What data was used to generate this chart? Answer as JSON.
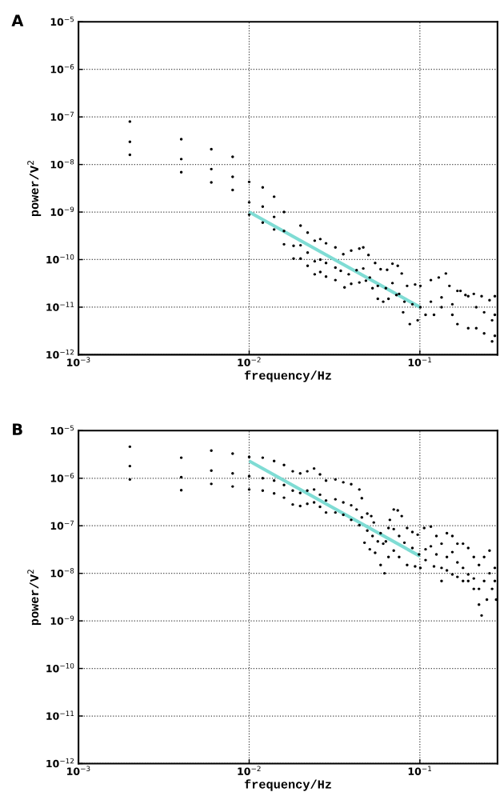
{
  "chart_data": [
    {
      "type": "scatter",
      "annotations": [
        "A"
      ],
      "xlabel": "frequency/Hz",
      "ylabel": "power/V$^{2}$",
      "log": "xy",
      "grid": true,
      "xlim": [
        0.001,
        0.285
      ],
      "ylim": [
        1e-12,
        1e-05
      ],
      "xticks": [
        {
          "value": 0.001,
          "label": "10$^{−3}$"
        },
        {
          "value": 0.01,
          "label": "10$^{−2}$"
        },
        {
          "value": 0.1,
          "label": "10$^{−1}$"
        }
      ],
      "yticks": [
        {
          "value": 1e-12,
          "label": "10$^{−12}$"
        },
        {
          "value": 1e-11,
          "label": "10$^{−11}$"
        },
        {
          "value": 1e-10,
          "label": "10$^{−10}$"
        },
        {
          "value": 1e-09,
          "label": "10$^{−9}$"
        },
        {
          "value": 1e-08,
          "label": "10$^{−8}$"
        },
        {
          "value": 1e-07,
          "label": "10$^{−7}$"
        },
        {
          "value": 1e-06,
          "label": "10$^{−6}$"
        },
        {
          "value": 1e-05,
          "label": "10$^{−5}$"
        }
      ],
      "series": [
        {
          "color": "#000000",
          "x": [
            0.002,
            0.004,
            0.006,
            0.008,
            0.01,
            0.012,
            0.014,
            0.016,
            0.02,
            0.022,
            0.0242,
            0.0261,
            0.0282,
            0.032,
            0.0356,
            0.0396,
            0.0442,
            0.0466,
            0.05,
            0.0547,
            0.0589,
            0.0643,
            0.0691,
            0.0742,
            0.0783,
            0.0842,
            0.0938,
            0.1007,
            0.116,
            0.129,
            0.142,
            0.149,
            0.166,
            0.185,
            0.207,
            0.23,
            0.256,
            0.275
          ],
          "values": [
            8e-08,
            3.4e-08,
            2.1e-08,
            1.45e-08,
            4.3e-09,
            3.3e-09,
            2.1e-09,
            1e-09,
            5.2e-10,
            3.7e-10,
            2.5e-10,
            2.7e-10,
            2.2e-10,
            1.8e-10,
            1.3e-10,
            1.55e-10,
            1.7e-10,
            1.8e-10,
            1.25e-10,
            8.5e-11,
            6.3e-11,
            6.1e-11,
            8.2e-11,
            7.4e-11,
            5.1e-11,
            2.8e-11,
            3e-11,
            2.8e-11,
            3.7e-11,
            4.2e-11,
            5.1e-11,
            2.8e-11,
            2.2e-11,
            1.8e-11,
            1.9e-11,
            1.7e-11,
            1.4e-11,
            1.7e-11
          ]
        },
        {
          "color": "#000000",
          "x": [
            0.002,
            0.004,
            0.006,
            0.008,
            0.01,
            0.012,
            0.014,
            0.016,
            0.0182,
            0.02,
            0.022,
            0.0242,
            0.0261,
            0.0282,
            0.032,
            0.0344,
            0.0383,
            0.0426,
            0.0466,
            0.0509,
            0.0567,
            0.0632,
            0.0691,
            0.0756,
            0.0812,
            0.0904,
            0.1007,
            0.116,
            0.134,
            0.155,
            0.173,
            0.192,
            0.214,
            0.238,
            0.265,
            0.275
          ],
          "values": [
            3e-08,
            1.3e-08,
            8e-09,
            5.5e-09,
            1.6e-09,
            1.3e-09,
            7.9e-10,
            4e-10,
            1.95e-10,
            2e-10,
            1.4e-10,
            9.2e-11,
            1e-10,
            8.5e-11,
            6.8e-11,
            5.8e-11,
            4.9e-11,
            6e-11,
            6.5e-11,
            4.2e-11,
            2.8e-11,
            2.5e-11,
            3.2e-11,
            1.9e-11,
            1.3e-11,
            1.15e-11,
            1e-11,
            1.3e-11,
            1.6e-11,
            1.15e-11,
            2.2e-11,
            1.7e-11,
            1e-11,
            7.8e-12,
            5.3e-12,
            6.9e-12
          ]
        },
        {
          "color": "#000000",
          "x": [
            0.002,
            0.004,
            0.006,
            0.008,
            0.01,
            0.012,
            0.014,
            0.016,
            0.0182,
            0.02,
            0.022,
            0.0242,
            0.0261,
            0.0282,
            0.032,
            0.0362,
            0.0396,
            0.0442,
            0.0483,
            0.0528,
            0.0567,
            0.061,
            0.0655,
            0.0729,
            0.0798,
            0.0873,
            0.0971,
            0.108,
            0.121,
            0.134,
            0.155,
            0.166,
            0.192,
            0.214,
            0.238,
            0.265,
            0.275
          ],
          "values": [
            1.6e-08,
            6.9e-09,
            4.2e-09,
            2.9e-09,
            8.8e-10,
            6e-10,
            4.3e-10,
            2.1e-10,
            1.05e-10,
            1.05e-10,
            7.4e-11,
            4.9e-11,
            5.5e-11,
            4.4e-11,
            3.7e-11,
            2.6e-11,
            3.1e-11,
            3.3e-11,
            3.6e-11,
            2.5e-11,
            1.5e-11,
            1.3e-11,
            1.5e-11,
            1.8e-11,
            7.8e-12,
            4.4e-12,
            5.3e-12,
            6.9e-12,
            6.9e-12,
            1e-11,
            6.9e-12,
            4.4e-12,
            3.6e-12,
            3.6e-12,
            2.8e-12,
            1.9e-12,
            2.5e-12
          ]
        },
        {
          "type": "line",
          "color": "#7fdcd4",
          "x": [
            0.01,
            0.1
          ],
          "values": [
            1e-09,
            1e-11
          ]
        }
      ]
    },
    {
      "type": "scatter",
      "annotations": [
        "B"
      ],
      "xlabel": "frequency/Hz",
      "ylabel": "power/V$^{2}$",
      "log": "xy",
      "grid": true,
      "xlim": [
        0.001,
        0.285
      ],
      "ylim": [
        1e-12,
        1e-05
      ],
      "xticks": [
        {
          "value": 0.001,
          "label": "10$^{−3}$"
        },
        {
          "value": 0.01,
          "label": "10$^{−2}$"
        },
        {
          "value": 0.1,
          "label": "10$^{−1}$"
        }
      ],
      "yticks": [
        {
          "value": 1e-12,
          "label": "10$^{−12}$"
        },
        {
          "value": 1e-11,
          "label": "10$^{−11}$"
        },
        {
          "value": 1e-10,
          "label": "10$^{−10}$"
        },
        {
          "value": 1e-09,
          "label": "10$^{−9}$"
        },
        {
          "value": 1e-08,
          "label": "10$^{−8}$"
        },
        {
          "value": 1e-07,
          "label": "10$^{−7}$"
        },
        {
          "value": 1e-06,
          "label": "10$^{−6}$"
        },
        {
          "value": 1e-05,
          "label": "10$^{−5}$"
        }
      ],
      "series": [
        {
          "color": "#000000",
          "x": [
            0.002,
            0.004,
            0.006,
            0.008,
            0.01,
            0.012,
            0.014,
            0.016,
            0.018,
            0.0199,
            0.0219,
            0.024,
            0.026,
            0.0282,
            0.032,
            0.0356,
            0.0396,
            0.0442,
            0.0457,
            0.0492,
            0.0519,
            0.0537,
            0.0589,
            0.0632,
            0.0667,
            0.0703,
            0.0742,
            0.0783,
            0.0842,
            0.0904,
            0.0971,
            0.106,
            0.116,
            0.125,
            0.134,
            0.144,
            0.155,
            0.166,
            0.179,
            0.192,
            0.207,
            0.222,
            0.238,
            0.256,
            0.275
          ],
          "values": [
            4.6e-06,
            2.7e-06,
            3.8e-06,
            3.3e-06,
            2.8e-06,
            2.7e-06,
            2.3e-06,
            1.9e-06,
            1.4e-06,
            1.26e-06,
            1.4e-06,
            1.6e-06,
            1.2e-06,
            8.9e-07,
            9.4e-07,
            8.2e-07,
            7.5e-07,
            5.8e-07,
            3.8e-07,
            1.8e-07,
            1.6e-07,
            1.17e-07,
            7e-08,
            4.7e-08,
            1.33e-07,
            2.2e-07,
            2.1e-07,
            1.6e-07,
            9e-08,
            7.4e-08,
            6.5e-08,
            9e-08,
            9.6e-08,
            6.1e-08,
            4.2e-08,
            7e-08,
            6.1e-08,
            4.2e-08,
            4.2e-08,
            3.4e-08,
            2.2e-08,
            1.5e-08,
            2.2e-08,
            3e-08,
            1.3e-08
          ]
        },
        {
          "color": "#000000",
          "x": [
            0.002,
            0.004,
            0.006,
            0.008,
            0.01,
            0.012,
            0.014,
            0.016,
            0.018,
            0.0199,
            0.0219,
            0.024,
            0.026,
            0.0282,
            0.032,
            0.0356,
            0.0396,
            0.0426,
            0.0457,
            0.0492,
            0.0528,
            0.0567,
            0.061,
            0.0655,
            0.0703,
            0.0756,
            0.0812,
            0.0904,
            0.0989,
            0.108,
            0.116,
            0.125,
            0.134,
            0.144,
            0.155,
            0.166,
            0.179,
            0.192,
            0.207,
            0.222,
            0.238,
            0.256,
            0.275
          ],
          "values": [
            1.8e-06,
            1.05e-06,
            1.45e-06,
            1.26e-06,
            1.1e-06,
            1e-06,
            8.9e-07,
            7.2e-07,
            5.5e-07,
            4.9e-07,
            5.5e-07,
            5.8e-07,
            4.5e-07,
            3.4e-07,
            3.6e-07,
            3.1e-07,
            2.7e-07,
            2.2e-07,
            1.5e-07,
            7.9e-08,
            6.1e-08,
            4.7e-08,
            4.2e-08,
            9e-08,
            8.5e-08,
            6.1e-08,
            4.4e-08,
            3.4e-08,
            2.5e-08,
            3.2e-08,
            3.7e-08,
            2.5e-08,
            1.3e-08,
            2.2e-08,
            2.8e-08,
            1.7e-08,
            1.3e-08,
            9.5e-09,
            7.8e-09,
            4.7e-09,
            6.9e-09,
            1e-08,
            6.9e-09
          ]
        },
        {
          "color": "#000000",
          "x": [
            0.002,
            0.004,
            0.006,
            0.008,
            0.01,
            0.012,
            0.014,
            0.016,
            0.018,
            0.0199,
            0.0219,
            0.024,
            0.026,
            0.0282,
            0.032,
            0.0356,
            0.0396,
            0.0442,
            0.0474,
            0.0509,
            0.0547,
            0.0589,
            0.0621,
            0.0655,
            0.0703,
            0.0756,
            0.0842,
            0.0938,
            0.1007,
            0.108,
            0.121,
            0.134,
            0.144,
            0.155,
            0.166,
            0.179,
            0.192,
            0.207,
            0.222,
            0.23,
            0.247,
            0.265,
            0.28
          ],
          "values": [
            9.4e-07,
            5.6e-07,
            7.6e-07,
            6.7e-07,
            5.8e-07,
            5.5e-07,
            4.8e-07,
            3.9e-07,
            2.8e-07,
            2.6e-07,
            2.9e-07,
            3.1e-07,
            2.5e-07,
            1.9e-07,
            1.9e-07,
            1.7e-07,
            1.33e-07,
            1.03e-07,
            4.4e-08,
            3.2e-08,
            2.7e-08,
            1.5e-08,
            1e-08,
            2.2e-08,
            3e-08,
            2.2e-08,
            1.5e-08,
            1.4e-08,
            1.3e-08,
            1.9e-08,
            1.4e-08,
            6.9e-09,
            1.15e-08,
            9.5e-09,
            8.4e-09,
            6.9e-09,
            6.9e-09,
            4.7e-09,
            2.2e-09,
            1.3e-09,
            2.8e-09,
            4.7e-09,
            2.8e-09
          ]
        },
        {
          "type": "line",
          "color": "#7fdcd4",
          "x": [
            0.01,
            0.1
          ],
          "values": [
            2.3e-06,
            2.3e-08
          ]
        }
      ]
    }
  ]
}
